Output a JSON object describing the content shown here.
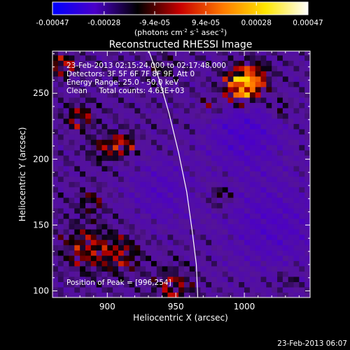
{
  "colorbar": {
    "tick_labels": [
      "-0.00047",
      "-0.00028",
      "-9.4e-05",
      "9.4e-05",
      "0.00028",
      "0.00047"
    ],
    "tick_values": [
      -0.00047,
      -0.00028,
      -9.4e-05,
      9.4e-05,
      0.00028,
      0.00047
    ],
    "range": [
      -0.00047,
      0.00047
    ],
    "unit_label": "(photons cm-2 s-1 asec-2)",
    "colors": [
      "#0000ff",
      "#4b00c8",
      "#000000",
      "#c80000",
      "#ff7a00",
      "#ffe600",
      "#ffffff"
    ]
  },
  "chart_data": {
    "type": "heatmap",
    "title": "Reconstructed RHESSI Image",
    "xlabel": "Heliocentric X (arcsec)",
    "ylabel": "Heliocentric Y (arcsec)",
    "xlim": [
      860,
      1048
    ],
    "ylim": [
      95,
      282
    ],
    "x_ticks": [
      900,
      950,
      1000
    ],
    "y_ticks": [
      100,
      150,
      200,
      250
    ],
    "x_tick_labels": [
      "900",
      "950",
      "1000"
    ],
    "y_tick_labels": [
      "100",
      "150",
      "200",
      "250"
    ],
    "grid": false,
    "annotations": [
      "23-Feb-2013 02:15:24.000 to 02:17:48.000",
      "Detectors: 3F 5F 6F 7F 8F 9F, Att 0",
      "Energy Range: 25.0 - 50.0 keV",
      "Clean     Total counts: 4.63E+03"
    ],
    "peak_label": "Position of Peak = [996,254]",
    "peak": [
      996,
      254
    ],
    "limb_curve": [
      [
        930,
        283
      ],
      [
        938,
        260
      ],
      [
        945,
        235
      ],
      [
        952,
        205
      ],
      [
        958,
        175
      ],
      [
        962,
        145
      ],
      [
        965,
        120
      ],
      [
        966,
        95
      ]
    ],
    "sources": [
      {
        "x": 998,
        "y": 255,
        "r": 9,
        "amp": 1.0
      },
      {
        "x": 1007,
        "y": 262,
        "r": 8,
        "amp": 0.55
      },
      {
        "x": 868,
        "y": 272,
        "r": 6,
        "amp": 0.55
      },
      {
        "x": 880,
        "y": 232,
        "r": 7,
        "amp": 0.45
      },
      {
        "x": 912,
        "y": 212,
        "r": 6,
        "amp": 0.55
      },
      {
        "x": 898,
        "y": 208,
        "r": 7,
        "amp": 0.4
      },
      {
        "x": 888,
        "y": 168,
        "r": 6,
        "amp": 0.35
      },
      {
        "x": 885,
        "y": 133,
        "r": 12,
        "amp": 0.45
      },
      {
        "x": 910,
        "y": 128,
        "r": 10,
        "amp": 0.4
      },
      {
        "x": 948,
        "y": 103,
        "r": 10,
        "amp": 0.4
      },
      {
        "x": 983,
        "y": 172,
        "r": 6,
        "amp": 0.35
      },
      {
        "x": 1025,
        "y": 238,
        "r": 6,
        "amp": 0.3
      },
      {
        "x": 975,
        "y": 240,
        "r": 6,
        "amp": 0.28
      },
      {
        "x": 1032,
        "y": 110,
        "r": 6,
        "amp": 0.25
      },
      {
        "x": 940,
        "y": 270,
        "r": 6,
        "amp": 0.3
      }
    ],
    "negative_regions": [
      {
        "x": 1000,
        "y": 220,
        "r": 28,
        "amp": 0.35
      },
      {
        "x": 1020,
        "y": 150,
        "r": 35,
        "amp": 0.3
      },
      {
        "x": 940,
        "y": 175,
        "r": 25,
        "amp": 0.25
      }
    ]
  },
  "timestamp": "23-Feb-2013 06:07"
}
